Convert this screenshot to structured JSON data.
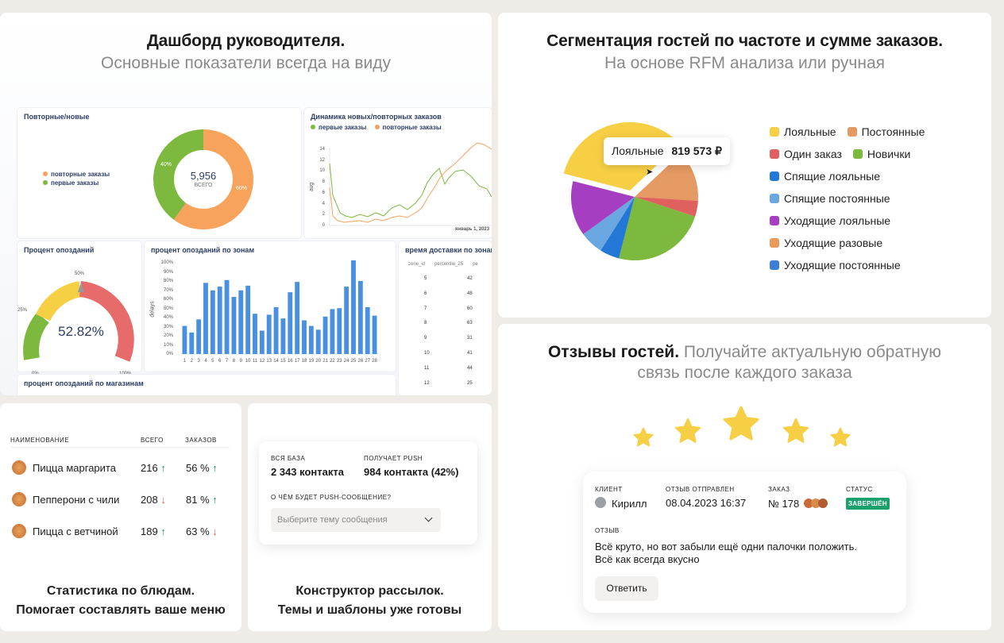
{
  "dash": {
    "title": "Дашборд руководителя.",
    "subtitle": "Основные показатели всегда на виду",
    "donut": {
      "title": "Повторные/новые",
      "legend": [
        "повторные заказы",
        "первые заказы"
      ],
      "center_value": "5,956",
      "center_label": "ВСЕГО",
      "pct_left": "40%",
      "pct_right": "60%",
      "colors": {
        "repeat": "#f7a35c",
        "first": "#7cb93e"
      }
    },
    "line": {
      "title": "Динамика новых/повторных заказов",
      "legend": [
        "первые заказы",
        "повторные заказы"
      ],
      "ylabel": "avg",
      "yticks": [
        "14",
        "12",
        "10",
        "8",
        "6",
        "4",
        "2",
        "0"
      ],
      "xlabel": "январь 1, 2023"
    },
    "gauge": {
      "title": "Процент опозданий",
      "value": "52.82%",
      "ticks": {
        "q50": "50%",
        "q25": "25%",
        "q0": "0%",
        "q100": "100%"
      }
    },
    "bars_zone": {
      "title": "процент опозданий по зонам",
      "ylabel": "delays",
      "yticks": [
        "100%",
        "90%",
        "80%",
        "70%",
        "60%",
        "50%",
        "40%",
        "30%",
        "20%",
        "10%",
        "0%"
      ]
    },
    "delivery": {
      "title": "время доставки по зонам",
      "headers": [
        "zone_id",
        "percentile_25",
        "pe"
      ],
      "rows": [
        [
          "5",
          "42"
        ],
        [
          "6",
          "48"
        ],
        [
          "7",
          "60"
        ],
        [
          "8",
          "63"
        ],
        [
          "9",
          "31"
        ],
        [
          "10",
          "41"
        ],
        [
          "11",
          "44"
        ],
        [
          "12",
          "25"
        ]
      ]
    },
    "shops_title": "процент опозданий по магазинам"
  },
  "chart_data": [
    {
      "type": "pie",
      "categories": [
        "повторные заказы",
        "первые заказы"
      ],
      "values": [
        60,
        40
      ],
      "title": "Повторные/новые"
    },
    {
      "type": "bar",
      "title": "процент опозданий по зонам",
      "ylabel": "delays",
      "ylim": [
        0,
        100
      ],
      "categories": [
        "1",
        "2",
        "3",
        "4",
        "5",
        "6",
        "7",
        "8",
        "9",
        "10",
        "11",
        "12",
        "13",
        "14",
        "15",
        "16",
        "17",
        "18",
        "19",
        "20",
        "21",
        "22",
        "23",
        "24",
        "25",
        "26",
        "27",
        "28"
      ],
      "values": [
        30,
        23,
        37,
        76,
        68,
        72,
        79,
        61,
        68,
        73,
        43,
        25,
        42,
        50,
        38,
        66,
        77,
        36,
        30,
        26,
        40,
        48,
        49,
        72,
        100,
        78,
        50,
        41
      ]
    },
    {
      "type": "pie",
      "title": "",
      "categories": [
        "Лояльные",
        "Постоянные",
        "Один заказ",
        "Новички",
        "Спящие лояльные",
        "Спящие постоянные",
        "Уходящие лояльные"
      ],
      "values": [
        34,
        13,
        4,
        24,
        5,
        6,
        14
      ]
    }
  ],
  "segments": {
    "title": "Сегментация гостей по частоте и сумме заказов.",
    "subtitle": "На основе RFM анализа или ручная",
    "tooltip_label": "Лояльные",
    "tooltip_value": "819 573 ₽",
    "legend": [
      {
        "label": "Лояльные",
        "color": "#f6cf45"
      },
      {
        "label": "Постоянные",
        "color": "#e49a62"
      },
      {
        "label": "Один заказ",
        "color": "#e0605f"
      },
      {
        "label": "Новички",
        "color": "#7cb93e"
      },
      {
        "label": "Спящие лояльные",
        "color": "#2378d7"
      },
      {
        "label": "Спящие постоянные",
        "color": "#6aa7e0"
      },
      {
        "label": "Уходящие лояльные",
        "color": "#a53ec0"
      },
      {
        "label": "Уходящие разовые",
        "color": "#ea9a5a"
      },
      {
        "label": "Уходящие постоянные",
        "color": "#3e7fd5"
      }
    ]
  },
  "dishes": {
    "headers": {
      "name": "НАИМЕНОВАНИЕ",
      "total": "ВСЕГО",
      "orders": "ЗАКАЗОВ"
    },
    "rows": [
      {
        "name": "Пицца маргарита",
        "total": "216",
        "orders": "56 %",
        "total_trend": "up",
        "orders_trend": "up"
      },
      {
        "name": "Пепперони с чили",
        "total": "208",
        "orders": "81 %",
        "total_trend": "down",
        "orders_trend": "up"
      },
      {
        "name": "Пицца с ветчиной",
        "total": "189",
        "orders": "63 %",
        "total_trend": "up",
        "orders_trend": "down"
      }
    ],
    "caption1": "Статистика по блюдам.",
    "caption2": "Помогает составлять ваше меню"
  },
  "mailing": {
    "base_label": "ВСЯ БАЗА",
    "base_value": "2 343 контакта",
    "push_label": "ПОЛУЧАЕТ PUSH",
    "push_value": "984 контакта (42%)",
    "question": "О ЧЁМ БУДЕТ PUSH-СООБЩЕНИЕ?",
    "select_placeholder": "Выберите тему сообщения",
    "caption1": "Конструктор рассылок.",
    "caption2": "Темы и шаблоны уже готовы"
  },
  "reviews": {
    "title_bold": "Отзывы гостей.",
    "title_gray1": "Получайте актуальную обратную",
    "title_gray2": "связь после каждого заказа",
    "client_label": "КЛИЕНТ",
    "client_name": "Кирилл",
    "sent_label": "ОТЗЫВ ОТПРАВЛЕН",
    "sent_value": "08.04.2023 16:37",
    "order_label": "ЗАКАЗ",
    "order_value": "№ 178",
    "status_label": "СТАТУС",
    "status_value": "ЗАВЕРШЁН",
    "review_label": "ОТЗЫВ",
    "review_text1": "Всё круто, но вот забыли ещё одни палочки положить.",
    "review_text2": "Всё как всегда вкусно",
    "reply_button": "Ответить",
    "star_color": "#f6cf45",
    "status_color": "#1aa06d"
  }
}
